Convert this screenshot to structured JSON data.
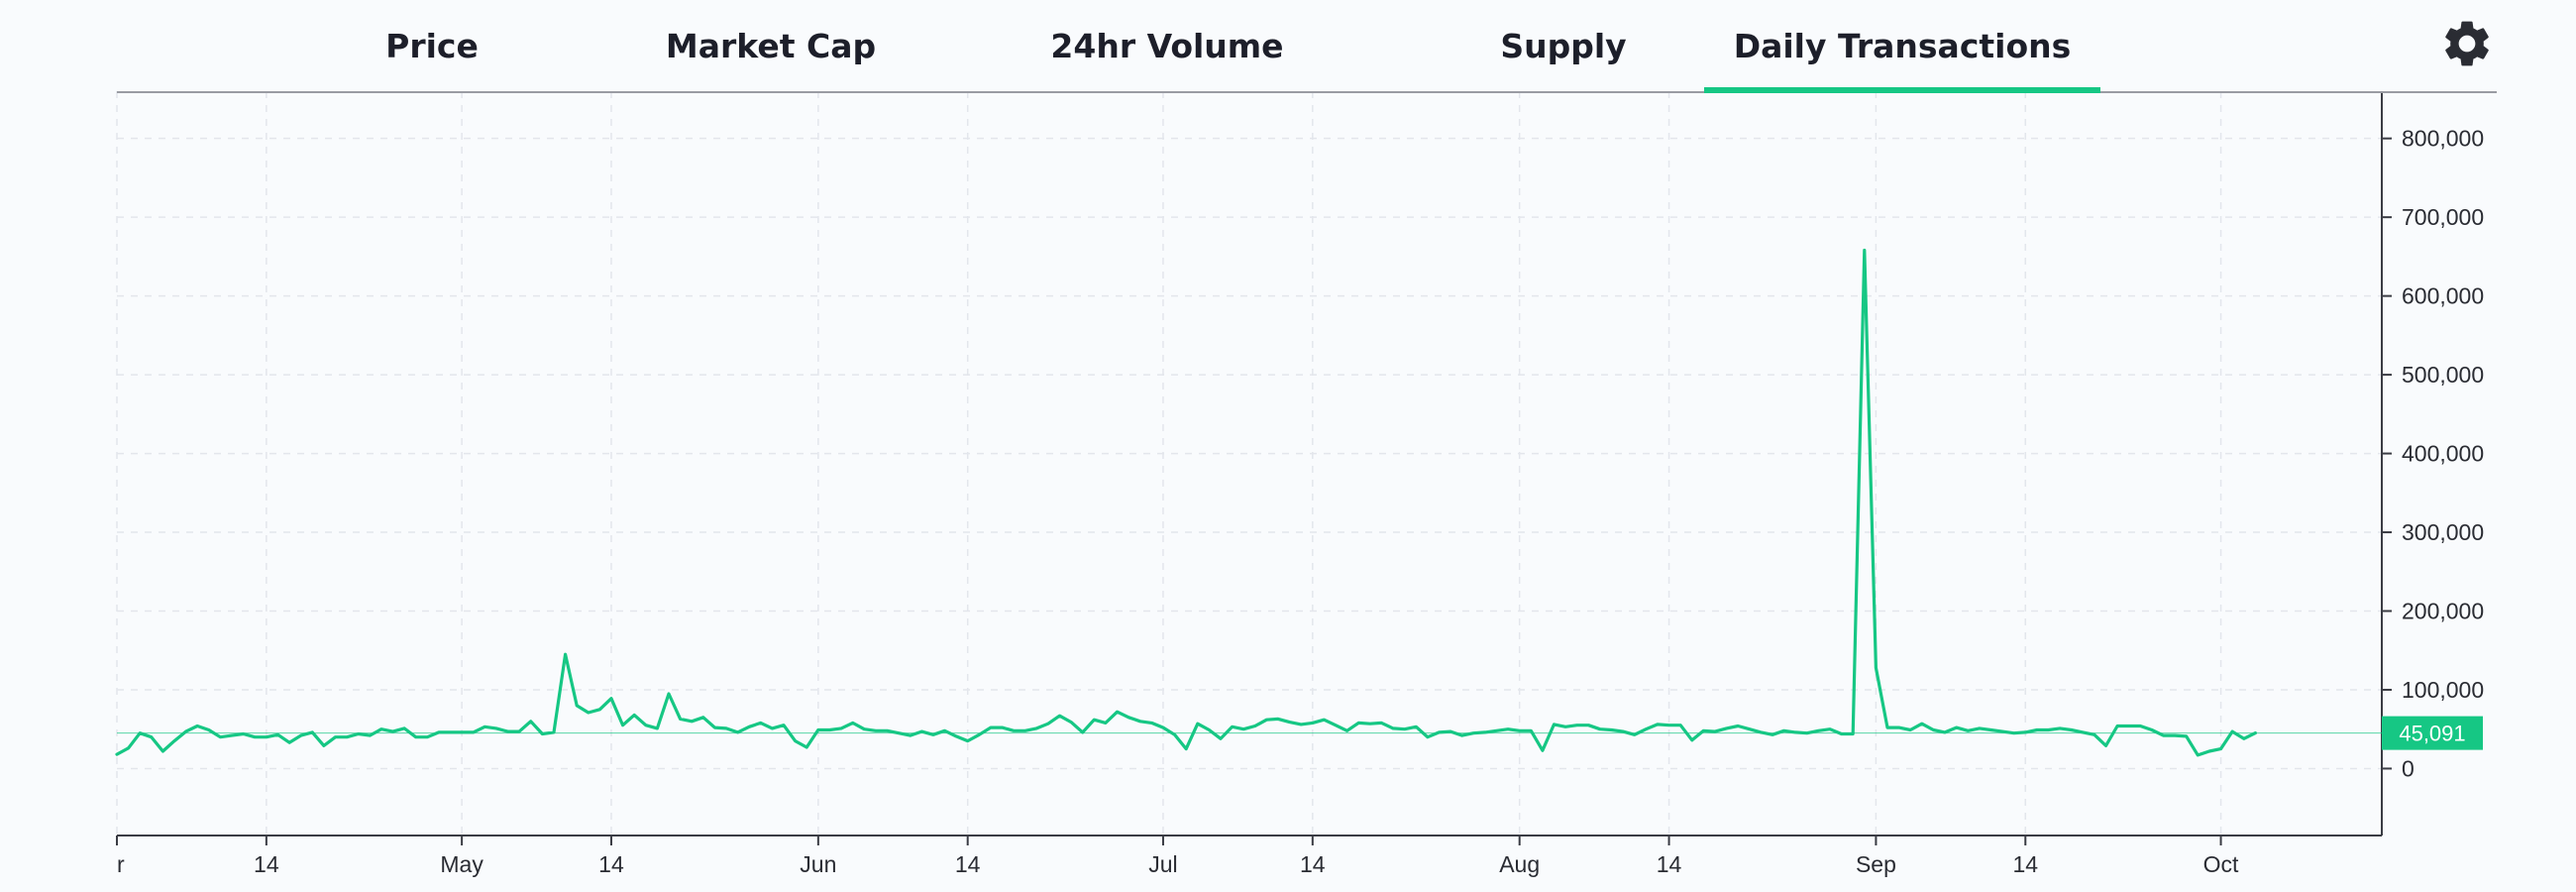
{
  "tabs": [
    {
      "label": "Price",
      "active": false
    },
    {
      "label": "Market Cap",
      "active": false
    },
    {
      "label": "24hr Volume",
      "active": false
    },
    {
      "label": "Supply",
      "active": false
    },
    {
      "label": "Daily Transactions",
      "active": true
    }
  ],
  "settings_icon": "gear-icon",
  "colors": {
    "accent": "#16c784",
    "text": "#1d1f2a",
    "grid": "#e3e6ec",
    "background": "#f9fbfd"
  },
  "chart_data": {
    "type": "line",
    "title": "",
    "xlabel": "",
    "ylabel": "",
    "ylim": [
      -85000,
      860000
    ],
    "yticks": [
      0,
      100000,
      200000,
      300000,
      400000,
      500000,
      600000,
      700000,
      800000
    ],
    "ytick_labels": [
      "0",
      "100,000",
      "200,000",
      "300,000",
      "400,000",
      "500,000",
      "600,000",
      "700,000",
      "800,000"
    ],
    "xlim": [
      "2020-04-01",
      "2020-10-15"
    ],
    "xticks": [
      {
        "date": "2020-04-01",
        "label": "r"
      },
      {
        "date": "2020-04-14",
        "label": "14"
      },
      {
        "date": "2020-05-01",
        "label": "May"
      },
      {
        "date": "2020-05-14",
        "label": "14"
      },
      {
        "date": "2020-06-01",
        "label": "Jun"
      },
      {
        "date": "2020-06-14",
        "label": "14"
      },
      {
        "date": "2020-07-01",
        "label": "Jul"
      },
      {
        "date": "2020-07-14",
        "label": "14"
      },
      {
        "date": "2020-08-01",
        "label": "Aug"
      },
      {
        "date": "2020-08-14",
        "label": "14"
      },
      {
        "date": "2020-09-01",
        "label": "Sep"
      },
      {
        "date": "2020-09-14",
        "label": "14"
      },
      {
        "date": "2020-10-01",
        "label": "Oct"
      }
    ],
    "grid": true,
    "y_axis_side": "right",
    "current_value": 45091,
    "current_value_label": "45,091",
    "series": [
      {
        "start_date": "2020-04-01",
        "color": "#16c784",
        "values": [
          18000,
          26000,
          45000,
          40000,
          22000,
          35000,
          47000,
          54000,
          49000,
          40000,
          42000,
          44000,
          40000,
          40000,
          43000,
          33000,
          42000,
          46000,
          29000,
          40000,
          40000,
          44000,
          42000,
          50000,
          47000,
          51000,
          40000,
          40000,
          46000,
          46000,
          46000,
          46000,
          53000,
          51000,
          47000,
          47000,
          60000,
          44000,
          46000,
          145000,
          80000,
          71000,
          75000,
          89000,
          55000,
          68000,
          55000,
          51000,
          95000,
          63000,
          60000,
          65000,
          52000,
          51000,
          46000,
          53000,
          58000,
          51000,
          55000,
          35000,
          27000,
          49000,
          49000,
          51000,
          58000,
          50000,
          48000,
          48000,
          45000,
          42000,
          47000,
          43000,
          48000,
          41000,
          35000,
          43000,
          52000,
          52000,
          48000,
          48000,
          51000,
          57000,
          67000,
          59000,
          46000,
          62000,
          58000,
          72000,
          65000,
          60000,
          58000,
          52000,
          43000,
          25000,
          57000,
          49000,
          38000,
          53000,
          50000,
          54000,
          62000,
          63000,
          59000,
          56000,
          58000,
          62000,
          55000,
          48000,
          58000,
          57000,
          58000,
          51000,
          50000,
          53000,
          40000,
          46000,
          47000,
          42000,
          45000,
          46000,
          48000,
          50000,
          48000,
          48000,
          23000,
          56000,
          53000,
          55000,
          55000,
          50000,
          49000,
          47000,
          43000,
          50000,
          56000,
          55000,
          55000,
          36000,
          48000,
          47000,
          51000,
          54000,
          50000,
          46000,
          43000,
          48000,
          46000,
          45000,
          48000,
          50000,
          44000,
          44000,
          658000,
          128000,
          52000,
          52000,
          49000,
          57000,
          49000,
          46000,
          52000,
          48000,
          51000,
          49000,
          47000,
          45000,
          46000,
          49000,
          49000,
          51000,
          49000,
          46000,
          43000,
          29000,
          54000,
          54000,
          54000,
          49000,
          42000,
          42000,
          41000,
          17000,
          22000,
          25000,
          47000,
          38000,
          45091
        ]
      }
    ]
  }
}
